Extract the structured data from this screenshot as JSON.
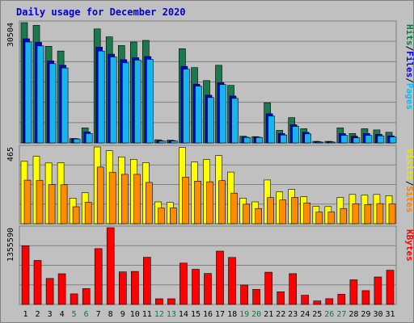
{
  "chart_data": {
    "type": "bar",
    "title": "Daily usage for December 2020",
    "categories": [
      "1",
      "2",
      "3",
      "4",
      "5",
      "6",
      "7",
      "8",
      "9",
      "10",
      "11",
      "12",
      "13",
      "14",
      "15",
      "16",
      "17",
      "18",
      "19",
      "20",
      "21",
      "22",
      "23",
      "24",
      "25",
      "26",
      "27",
      "28",
      "29",
      "30",
      "31"
    ],
    "weekend_days": [
      "5",
      "6",
      "12",
      "13",
      "19",
      "20",
      "26",
      "27"
    ],
    "panels": [
      {
        "name": "requests",
        "ymax_label": "30504",
        "ylim": [
          0,
          30504
        ],
        "right_labels": [
          {
            "text": "Hits",
            "color": "#008040"
          },
          {
            "text": "/",
            "color": "#000000"
          },
          {
            "text": "Files",
            "color": "#0000ff"
          },
          {
            "text": "/",
            "color": "#000000"
          },
          {
            "text": "Pages",
            "color": "#00c0ff"
          }
        ],
        "series": [
          {
            "name": "Hits",
            "color": "#1a7a4e",
            "values": [
              30504,
              29800,
              24500,
              23300,
              1100,
              3800,
              28900,
              26900,
              24700,
              25600,
              26000,
              800,
              700,
              23900,
              19100,
              15800,
              19700,
              14600,
              1700,
              1600,
              10200,
              3200,
              6400,
              3600,
              400,
              400,
              3800,
              2400,
              3600,
              3300,
              2700
            ]
          },
          {
            "name": "Files",
            "color": "#0000e0",
            "values": [
              26400,
              25500,
              20800,
              19700,
              1100,
              2800,
              24300,
              22500,
              21100,
              21600,
              21900,
              600,
              600,
              19400,
              14900,
              12100,
              15300,
              11900,
              1500,
              1500,
              7400,
              2400,
              4600,
              2700,
              300,
              300,
              2400,
              1700,
              2400,
              2200,
              1800
            ]
          },
          {
            "name": "Pages",
            "color": "#18b4f0",
            "values": [
              25600,
              24600,
              20100,
              19000,
              1000,
              2400,
              23300,
              21800,
              20300,
              21000,
              21200,
              500,
              500,
              18700,
              14400,
              11500,
              14800,
              11300,
              1400,
              1400,
              6800,
              2000,
              4200,
              2300,
              200,
              200,
              1900,
              1300,
              1900,
              1800,
              1500
            ]
          }
        ]
      },
      {
        "name": "visits",
        "ymax_label": "465",
        "ylim": [
          0,
          465
        ],
        "right_labels": [
          {
            "text": "Visits",
            "color": "#e8e800"
          },
          {
            "text": "/",
            "color": "#000000"
          },
          {
            "text": "Sites",
            "color": "#ff8000"
          }
        ],
        "series": [
          {
            "name": "Visits",
            "color": "#ffff00",
            "values": [
              378,
              408,
              368,
              369,
              155,
              188,
              465,
              442,
              405,
              390,
              370,
              132,
              129,
              462,
              374,
              388,
              413,
              313,
              155,
              132,
              265,
              193,
              208,
              163,
              105,
              104,
              159,
              177,
              173,
              177,
              170
            ]
          },
          {
            "name": "Sites",
            "color": "#ff8c00",
            "values": [
              264,
              262,
              237,
              236,
              103,
              130,
              343,
              311,
              299,
              299,
              250,
              95,
              96,
              282,
              258,
              254,
              261,
              185,
              118,
              92,
              158,
              144,
              159,
              126,
              70,
              71,
              92,
              121,
              116,
              122,
              120
            ]
          }
        ]
      },
      {
        "name": "kbytes",
        "ymax_label": "1355590",
        "ylim": [
          0,
          1355590
        ],
        "right_labels": [
          {
            "text": "KBytes",
            "color": "#ff0000"
          }
        ],
        "series": [
          {
            "name": "KBytes",
            "color": "#ff0000",
            "values": [
              1037000,
              777000,
              460000,
              542000,
              187000,
              280000,
              986000,
              1355590,
              575000,
              584000,
              834000,
              100000,
              100000,
              731000,
              621000,
              547000,
              942000,
              830000,
              343000,
              266000,
              569000,
              224000,
              544000,
              162000,
              61000,
              101000,
              180000,
              435000,
              244000,
              485000,
              605000
            ]
          }
        ]
      }
    ],
    "grid": true,
    "legend": "right (vertical)"
  }
}
